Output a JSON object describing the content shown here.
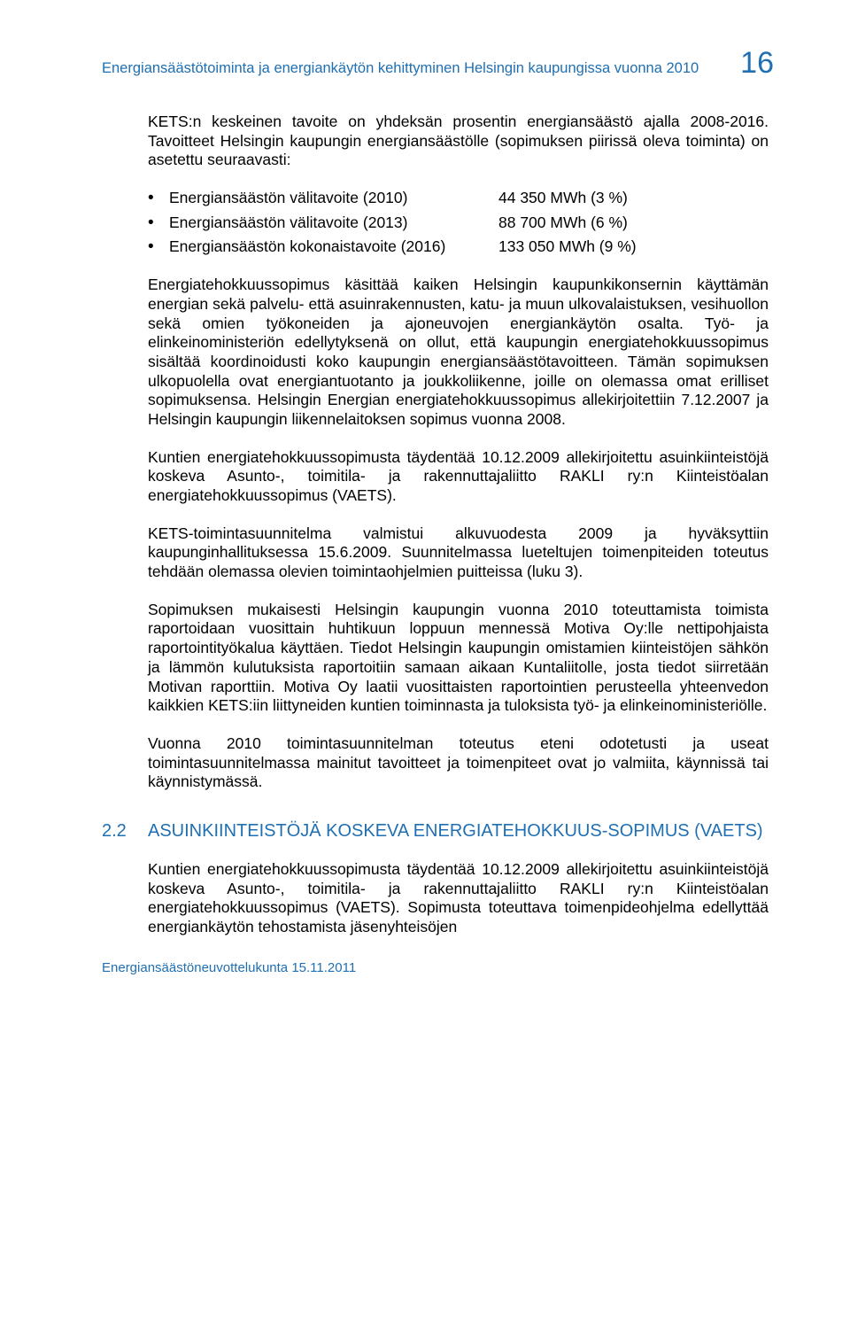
{
  "header": {
    "title": "Energiansäästötoiminta ja energiankäytön kehittyminen Helsingin kaupungissa vuonna 2010",
    "page_number": "16"
  },
  "colors": {
    "accent": "#1f6fb2",
    "body_text": "#000000",
    "background": "#ffffff"
  },
  "typography": {
    "body_font_size_pt": 13,
    "header_font_size_pt": 12,
    "page_number_font_size_pt": 26,
    "section_title_font_size_pt": 15,
    "font_family": "Arial"
  },
  "intro": "KETS:n keskeinen tavoite on yhdeksän prosentin energiansäästö ajalla 2008-2016. Tavoitteet Helsingin kaupungin energiansäästölle (sopimuksen piirissä oleva toiminta) on asetettu seuraavasti:",
  "bullets": [
    {
      "label": "Energiansäästön välitavoite (2010)",
      "value": "44 350 MWh (3 %)"
    },
    {
      "label": "Energiansäästön välitavoite (2013)",
      "value": "88 700 MWh (6 %)"
    },
    {
      "label": "Energiansäästön kokonaistavoite (2016)",
      "value": "133 050 MWh (9 %)"
    }
  ],
  "paragraphs": [
    "Energiatehokkuussopimus käsittää kaiken Helsingin kaupunkikonsernin käyttämän energian sekä palvelu- että asuinrakennusten, katu- ja muun ulkovalaistuksen, vesihuollon sekä omien työkoneiden ja ajoneuvojen energiankäytön osalta. Työ- ja elinkeinoministeriön edellytyksenä on ollut, että kaupungin energiatehokkuussopimus sisältää koordinoidusti koko kaupungin energiansäästötavoitteen. Tämän sopimuksen ulkopuolella ovat energiantuotanto ja joukkoliikenne, joille on olemassa omat erilliset sopimuksensa. Helsingin Energian energiatehokkuussopimus allekirjoitettiin 7.12.2007 ja Helsingin kaupungin liikennelaitoksen sopimus vuonna 2008.",
    "Kuntien energiatehokkuussopimusta täydentää 10.12.2009 allekirjoitettu asuinkiinteistöjä koskeva Asunto-, toimitila- ja rakennuttajaliitto RAKLI ry:n Kiinteistöalan energiatehokkuussopimus (VAETS).",
    "KETS-toimintasuunnitelma valmistui alkuvuodesta 2009 ja hyväksyttiin kaupunginhallituksessa 15.6.2009. Suunnitelmassa lueteltujen toimenpiteiden toteutus tehdään olemassa olevien toimintaohjelmien puitteissa (luku 3).",
    "Sopimuksen mukaisesti Helsingin kaupungin vuonna 2010 toteuttamista toimista raportoidaan vuosittain huhtikuun loppuun mennessä Motiva Oy:lle nettipohjaista raportointityökalua käyttäen. Tiedot Helsingin kaupungin omistamien kiinteistöjen sähkön ja lämmön kulutuksista raportoitiin samaan aikaan Kuntaliitolle, josta tiedot siirretään Motivan raporttiin. Motiva Oy laatii vuosittaisten raportointien perusteella yhteenvedon kaikkien KETS:iin liittyneiden kuntien toiminnasta ja tuloksista työ- ja elinkeinoministeriölle.",
    "Vuonna 2010 toimintasuunnitelman toteutus eteni odotetusti ja useat toimintasuunnitelmassa mainitut tavoitteet ja toimenpiteet ovat jo valmiita, käynnissä tai käynnistymässä."
  ],
  "section": {
    "number": "2.2",
    "title": "ASUINKIINTEISTÖJÄ KOSKEVA ENERGIATEHOKKUUS-SOPIMUS (VAETS)"
  },
  "section_para": "Kuntien energiatehokkuussopimusta täydentää 10.12.2009 allekirjoitettu asuinkiinteistöjä koskeva Asunto-, toimitila- ja rakennuttajaliitto RAKLI ry:n Kiinteistöalan energiatehokkuussopimus (VAETS). Sopimusta toteuttava toimenpideohjelma edellyttää energiankäytön tehostamista jäsenyhteisöjen",
  "footer": "Energiansäästöneuvottelukunta 15.11.2011"
}
